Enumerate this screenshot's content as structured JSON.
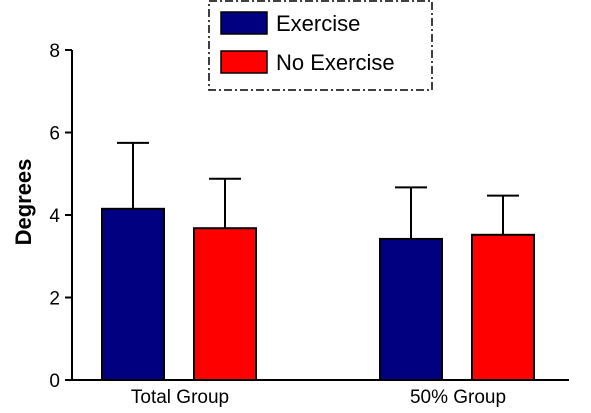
{
  "chart_data": {
    "type": "bar",
    "categories": [
      "Total Group",
      "50% Group"
    ],
    "series": [
      {
        "name": "Exercise",
        "color": "#000080",
        "values": [
          4.15,
          3.42
        ],
        "error_upper": [
          1.6,
          1.25
        ]
      },
      {
        "name": "No Exercise",
        "color": "#ff0000",
        "values": [
          3.68,
          3.52
        ],
        "error_upper": [
          1.2,
          0.95
        ]
      }
    ],
    "title": "",
    "xlabel": "",
    "ylabel": "Degrees",
    "ylim": [
      0,
      8
    ],
    "yticks": [
      0,
      2,
      4,
      6,
      8
    ],
    "grid": false,
    "legend": {
      "placement": "top-center",
      "border": "dash-dot"
    }
  }
}
